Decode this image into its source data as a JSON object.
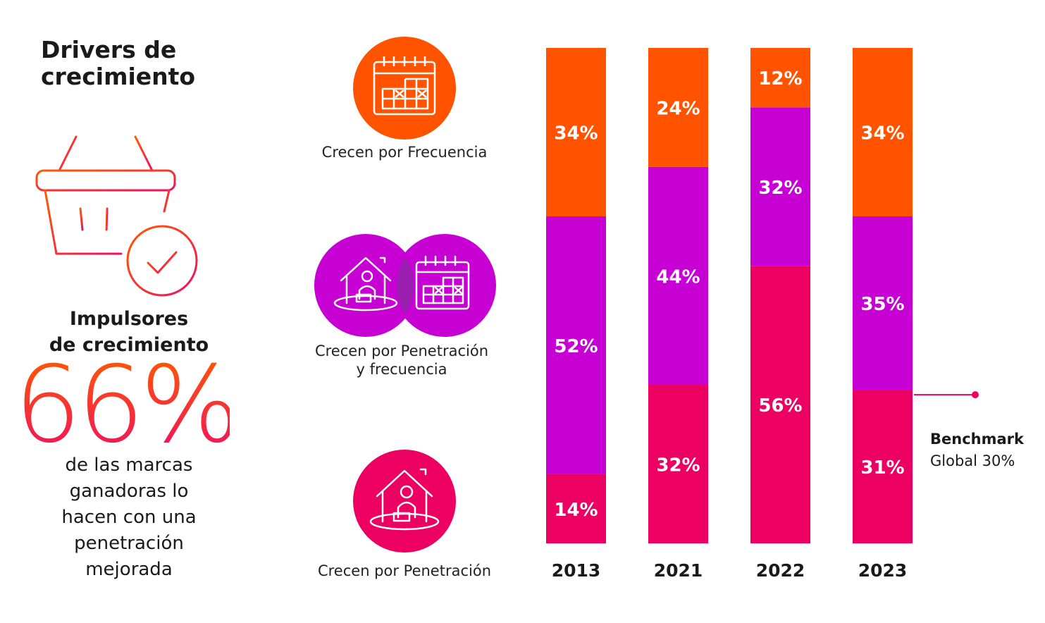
{
  "title": "Drivers de\ncrecimiento",
  "highlight": {
    "heading": "Impulsores\nde crecimiento",
    "value": "66%",
    "description": "de las marcas\nganadoras lo\nhacen con una\npenetración\nmejorada"
  },
  "legend": [
    {
      "icon": "calendar-icon",
      "label": "Crecen por Frecuencia",
      "color": "#ff5300"
    },
    {
      "icon": "house-calendar-icon",
      "label": "Crecen por Penetración\ny frecuencia",
      "color": "#c700d4"
    },
    {
      "icon": "house-person-icon",
      "label": "Crecen por Penetración",
      "color": "#ec0061"
    }
  ],
  "colors": {
    "frecuencia": "#ff5300",
    "penetracion_frecuencia": "#c700d4",
    "penetracion": "#ec0061",
    "text": "#1a1a1a"
  },
  "chart_data": {
    "type": "bar",
    "stacked": true,
    "normalized": true,
    "categories": [
      "2013",
      "2021",
      "2022",
      "2023"
    ],
    "series": [
      {
        "name": "Crecen por Penetración",
        "values": [
          14,
          32,
          56,
          31
        ],
        "color": "#ec0061"
      },
      {
        "name": "Crecen por Penetración y frecuencia",
        "values": [
          52,
          44,
          32,
          35
        ],
        "color": "#c700d4"
      },
      {
        "name": "Crecen por Frecuencia",
        "values": [
          34,
          24,
          12,
          34
        ],
        "color": "#ff5300"
      }
    ],
    "data_labels": [
      [
        "14%",
        "32%",
        "56%",
        "31%"
      ],
      [
        "52%",
        "44%",
        "32%",
        "35%"
      ],
      [
        "34%",
        "24%",
        "12%",
        "34%"
      ]
    ],
    "ylim": [
      0,
      100
    ],
    "title": "",
    "xlabel": "",
    "ylabel": "",
    "benchmark": {
      "label_bold": "Benchmark",
      "label": "Global 30%",
      "category": "2023",
      "value": 30
    }
  }
}
